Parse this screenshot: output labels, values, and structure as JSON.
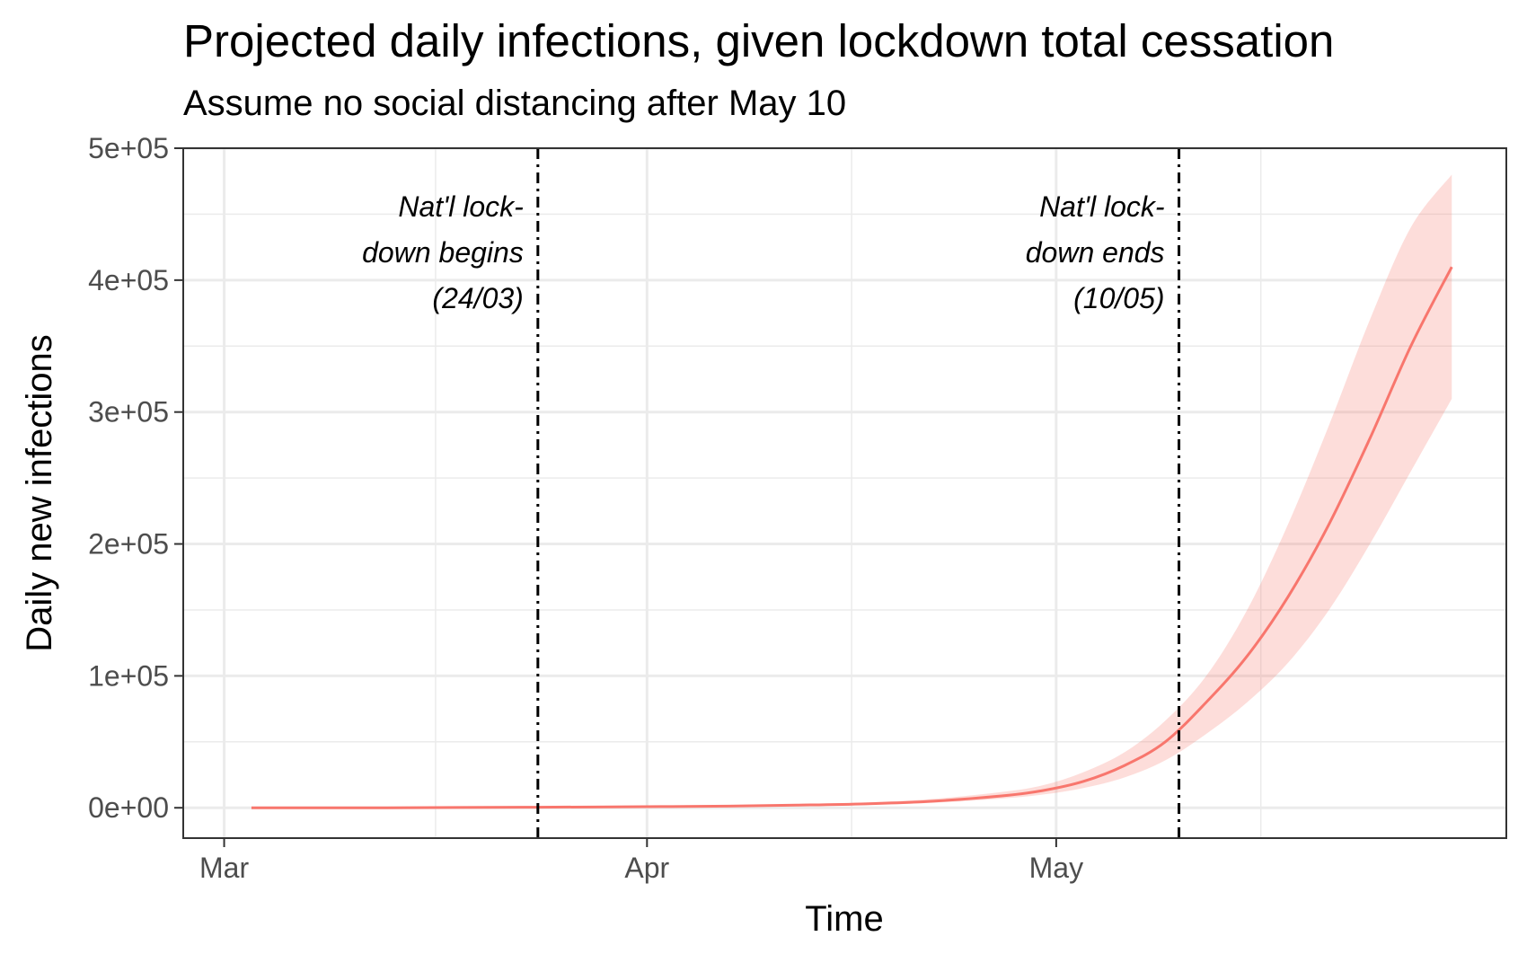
{
  "chart_data": {
    "type": "line",
    "title": "Projected daily infections, given lockdown total cessation",
    "subtitle": "Assume no social distancing after May 10",
    "xlabel": "Time",
    "ylabel": "Daily new infections",
    "x_ticks": [
      "Mar",
      "Apr",
      "May"
    ],
    "y_ticks": [
      "0e+00",
      "1e+05",
      "2e+05",
      "3e+05",
      "4e+05",
      "5e+05"
    ],
    "ylim": [
      -23000,
      500000
    ],
    "xlim_days": [
      "2020-02-27",
      "2020-06-03"
    ],
    "grid": true,
    "line_color": "#F8766D",
    "ribbon_color": "#F8766D",
    "series": [
      {
        "x": [
          "2020-03-03",
          "2020-03-08",
          "2020-03-13",
          "2020-03-18",
          "2020-03-23",
          "2020-03-28",
          "2020-04-02",
          "2020-04-07",
          "2020-04-12",
          "2020-04-17",
          "2020-04-22",
          "2020-04-27",
          "2020-04-30",
          "2020-05-03",
          "2020-05-06",
          "2020-05-09",
          "2020-05-12",
          "2020-05-15",
          "2020-05-18",
          "2020-05-21",
          "2020-05-24",
          "2020-05-27",
          "2020-05-30"
        ],
        "values": [
          0,
          0,
          0,
          200,
          400,
          600,
          900,
          1300,
          2000,
          3000,
          5000,
          9000,
          13000,
          20000,
          32000,
          50000,
          80000,
          115000,
          160000,
          215000,
          280000,
          350000,
          410000
        ],
        "lower": [
          0,
          0,
          0,
          100,
          300,
          500,
          700,
          1000,
          1500,
          2300,
          3800,
          7000,
          10000,
          15000,
          23000,
          36000,
          56000,
          80000,
          110000,
          150000,
          200000,
          255000,
          310000
        ],
        "upper": [
          0,
          0,
          0,
          300,
          500,
          700,
          1100,
          1600,
          2600,
          4000,
          6800,
          12000,
          17000,
          27000,
          42000,
          66000,
          100000,
          150000,
          215000,
          290000,
          370000,
          440000,
          480000
        ]
      }
    ],
    "annotations": [
      {
        "date": "2020-03-24",
        "lines": [
          "Nat'l lock-",
          "down begins",
          "(24/03)"
        ]
      },
      {
        "date": "2020-05-10",
        "lines": [
          "Nat'l lock-",
          "down ends",
          "(10/05)"
        ]
      }
    ]
  }
}
